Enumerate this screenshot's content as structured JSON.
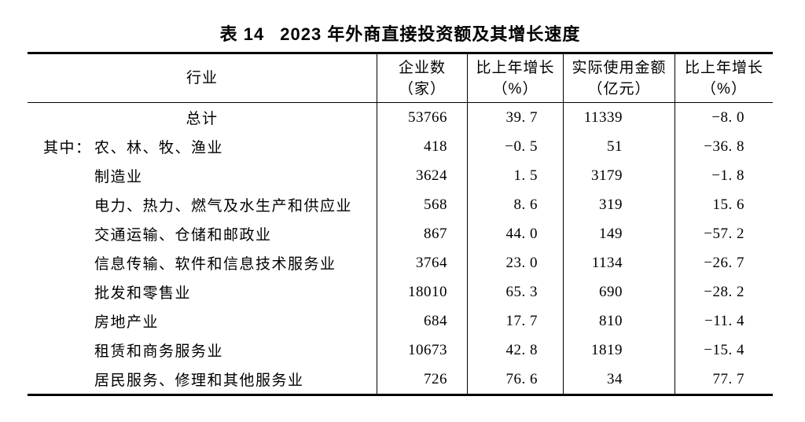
{
  "page": {
    "background": "#ffffff",
    "text_color": "#000000",
    "border_color": "#000000"
  },
  "table": {
    "title": {
      "label": "表 14",
      "text": "2023 年外商直接投资额及其增长速度"
    },
    "columns": [
      {
        "id": "industry",
        "header_lines": [
          "行业"
        ]
      },
      {
        "id": "enterprise_count",
        "header_lines": [
          "企业数",
          "（家）"
        ]
      },
      {
        "id": "enterprise_growth",
        "header_lines": [
          "比上年增长",
          "（%）"
        ]
      },
      {
        "id": "used_amount",
        "header_lines": [
          "实际使用金额",
          "（亿元）"
        ]
      },
      {
        "id": "amount_growth",
        "header_lines": [
          "比上年增长",
          "（%）"
        ]
      }
    ],
    "rows": [
      {
        "industry": "总计",
        "enterprise_count": "53766",
        "enterprise_growth": "39. 7",
        "used_amount": "11339",
        "amount_growth": "−8. 0"
      },
      {
        "prefix": "其中：",
        "industry": "农、林、牧、渔业",
        "enterprise_count": "418",
        "enterprise_growth": "−0. 5",
        "used_amount": "51",
        "amount_growth": "−36. 8"
      },
      {
        "industry": "制造业",
        "enterprise_count": "3624",
        "enterprise_growth": "1. 5",
        "used_amount": "3179",
        "amount_growth": "−1. 8"
      },
      {
        "industry": "电力、热力、燃气及水生产和供应业",
        "enterprise_count": "568",
        "enterprise_growth": "8. 6",
        "used_amount": "319",
        "amount_growth": "15. 6"
      },
      {
        "industry": "交通运输、仓储和邮政业",
        "enterprise_count": "867",
        "enterprise_growth": "44. 0",
        "used_amount": "149",
        "amount_growth": "−57. 2"
      },
      {
        "industry": "信息传输、软件和信息技术服务业",
        "enterprise_count": "3764",
        "enterprise_growth": "23. 0",
        "used_amount": "1134",
        "amount_growth": "−26. 7"
      },
      {
        "industry": "批发和零售业",
        "enterprise_count": "18010",
        "enterprise_growth": "65. 3",
        "used_amount": "690",
        "amount_growth": "−28. 2"
      },
      {
        "industry": "房地产业",
        "enterprise_count": "684",
        "enterprise_growth": "17. 7",
        "used_amount": "810",
        "amount_growth": "−11. 4"
      },
      {
        "industry": "租赁和商务服务业",
        "enterprise_count": "10673",
        "enterprise_growth": "42. 8",
        "used_amount": "1819",
        "amount_growth": "−15. 4"
      },
      {
        "industry": "居民服务、修理和其他服务业",
        "enterprise_count": "726",
        "enterprise_growth": "76. 6",
        "used_amount": "34",
        "amount_growth": "77. 7"
      }
    ]
  }
}
